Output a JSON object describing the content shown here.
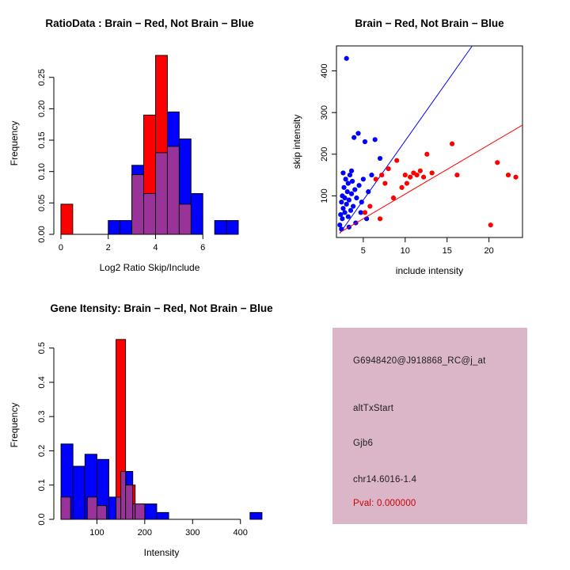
{
  "info_panel": {
    "bg": "#DBB6C9",
    "probe_id": "G6948420@J918868_RC@j_at",
    "event_type": "altTxStart",
    "gene": "Gjb6",
    "location": "chr14.6016-1.4",
    "pval": "Pval: 0.000000",
    "pval_color": "#CD0000",
    "text_color": "#1d1d1d"
  },
  "chart_data": [
    {
      "id": "ratio_hist",
      "type": "bar",
      "title": "RatioData : Brain − Red, Not Brain − Blue",
      "xlabel": "Log2 Ratio Skip/Include",
      "ylabel": "Frequency",
      "xlim": [
        -0.3,
        7.8
      ],
      "ylim": [
        0,
        0.29
      ],
      "grid": false,
      "legend": "none",
      "xticks": {
        "values": [
          0,
          2,
          4,
          6
        ],
        "labels": [
          "0",
          "2",
          "4",
          "6"
        ]
      },
      "yticks": {
        "values": [
          0,
          0.05,
          0.1,
          0.15,
          0.2,
          0.25
        ],
        "labels": [
          "0.00",
          "0.05",
          "0.10",
          "0.15",
          "0.20",
          "0.25"
        ]
      },
      "series": [
        {
          "name": "not-brain",
          "color": "#0000FF",
          "bins": [
            [
              2.0,
              2.5,
              0.022
            ],
            [
              2.5,
              3.0,
              0.022
            ],
            [
              3.0,
              3.5,
              0.11
            ],
            [
              3.5,
              4.0,
              0.065
            ],
            [
              4.0,
              4.5,
              0.13
            ],
            [
              4.5,
              5.0,
              0.195
            ],
            [
              5.0,
              5.5,
              0.152
            ],
            [
              5.5,
              6.0,
              0.065
            ],
            [
              6.5,
              7.0,
              0.022
            ],
            [
              7.0,
              7.5,
              0.022
            ]
          ]
        },
        {
          "name": "brain",
          "color": "#FF0000",
          "bins": [
            [
              0.0,
              0.5,
              0.048
            ],
            [
              3.0,
              3.5,
              0.095
            ],
            [
              3.5,
              4.0,
              0.19
            ],
            [
              4.0,
              4.5,
              0.285
            ],
            [
              4.5,
              5.0,
              0.14
            ],
            [
              5.0,
              5.5,
              0.048
            ]
          ]
        },
        {
          "name": "overlap",
          "color": "#993399",
          "bins": [
            [
              3.0,
              3.5,
              0.095
            ],
            [
              3.5,
              4.0,
              0.065
            ],
            [
              4.0,
              4.5,
              0.13
            ],
            [
              4.5,
              5.0,
              0.14
            ],
            [
              5.0,
              5.5,
              0.048
            ]
          ]
        }
      ]
    },
    {
      "id": "intensity_scatter",
      "type": "scatter",
      "title": "Brain − Red, Not Brain − Blue",
      "xlabel": "include intensity",
      "ylabel": "skip intensity",
      "xlim": [
        1.8,
        24
      ],
      "ylim": [
        0,
        460
      ],
      "grid": false,
      "legend": "none",
      "frame": true,
      "xticks": {
        "values": [
          5,
          10,
          15,
          20
        ],
        "labels": [
          "5",
          "10",
          "15",
          "20"
        ]
      },
      "yticks": {
        "values": [
          100,
          200,
          300,
          400
        ],
        "labels": [
          "100",
          "200",
          "300",
          "400"
        ]
      },
      "series": [
        {
          "name": "not-brain",
          "color": "#0000FF",
          "line": [
            [
              2.2,
              10
            ],
            [
              18.0,
              460
            ]
          ],
          "points": [
            [
              2.2,
              30
            ],
            [
              2.3,
              55
            ],
            [
              2.4,
              20
            ],
            [
              2.4,
              85
            ],
            [
              2.5,
              45
            ],
            [
              2.5,
              100
            ],
            [
              2.6,
              70
            ],
            [
              2.6,
              155
            ],
            [
              2.7,
              120
            ],
            [
              2.8,
              60
            ],
            [
              2.8,
              95
            ],
            [
              2.9,
              140
            ],
            [
              3.0,
              80
            ],
            [
              3.0,
              430
            ],
            [
              3.1,
              110
            ],
            [
              3.2,
              50
            ],
            [
              3.2,
              130
            ],
            [
              3.3,
              25
            ],
            [
              3.3,
              90
            ],
            [
              3.4,
              150
            ],
            [
              3.5,
              65
            ],
            [
              3.6,
              105
            ],
            [
              3.6,
              160
            ],
            [
              3.7,
              135
            ],
            [
              3.8,
              75
            ],
            [
              3.9,
              240
            ],
            [
              4.0,
              115
            ],
            [
              4.1,
              35
            ],
            [
              4.2,
              95
            ],
            [
              4.4,
              250
            ],
            [
              4.5,
              125
            ],
            [
              4.7,
              60
            ],
            [
              4.8,
              85
            ],
            [
              5.0,
              140
            ],
            [
              5.2,
              230
            ],
            [
              5.4,
              45
            ],
            [
              5.6,
              110
            ],
            [
              6.0,
              150
            ],
            [
              6.4,
              235
            ],
            [
              7.0,
              190
            ]
          ]
        },
        {
          "name": "brain",
          "color": "#FF0000",
          "line": [
            [
              2.2,
              12
            ],
            [
              24.0,
              270
            ]
          ],
          "points": [
            [
              5.2,
              60
            ],
            [
              5.8,
              75
            ],
            [
              6.5,
              140
            ],
            [
              7.0,
              45
            ],
            [
              7.2,
              150
            ],
            [
              7.6,
              130
            ],
            [
              8.0,
              165
            ],
            [
              8.6,
              95
            ],
            [
              9.0,
              185
            ],
            [
              9.6,
              120
            ],
            [
              10.0,
              150
            ],
            [
              10.2,
              130
            ],
            [
              10.6,
              145
            ],
            [
              11.0,
              155
            ],
            [
              11.4,
              150
            ],
            [
              11.8,
              160
            ],
            [
              12.2,
              145
            ],
            [
              12.6,
              200
            ],
            [
              13.2,
              155
            ],
            [
              15.6,
              225
            ],
            [
              16.2,
              150
            ],
            [
              20.2,
              30
            ],
            [
              21.0,
              180
            ],
            [
              22.3,
              150
            ],
            [
              23.2,
              145
            ]
          ]
        }
      ]
    },
    {
      "id": "gene_hist",
      "type": "bar",
      "title": "Gene Itensity: Brain − Red, Not Brain − Blue",
      "xlabel": "Intensity",
      "ylabel": "Frequency",
      "xlim": [
        10,
        460
      ],
      "ylim": [
        0,
        0.55
      ],
      "grid": false,
      "legend": "none",
      "xticks": {
        "values": [
          100,
          200,
          300,
          400
        ],
        "labels": [
          "100",
          "200",
          "300",
          "400"
        ]
      },
      "yticks": {
        "values": [
          0,
          0.1,
          0.2,
          0.3,
          0.4,
          0.5
        ],
        "labels": [
          "0.0",
          "0.1",
          "0.2",
          "0.3",
          "0.4",
          "0.5"
        ]
      },
      "series": [
        {
          "name": "not-brain",
          "color": "#0000FF",
          "bins": [
            [
              25,
              50,
              0.22
            ],
            [
              50,
              75,
              0.155
            ],
            [
              75,
              100,
              0.19
            ],
            [
              100,
              125,
              0.175
            ],
            [
              125,
              150,
              0.065
            ],
            [
              150,
              175,
              0.14
            ],
            [
              175,
              200,
              0.045
            ],
            [
              200,
              225,
              0.045
            ],
            [
              225,
              250,
              0.02
            ],
            [
              420,
              445,
              0.02
            ]
          ]
        },
        {
          "name": "brain",
          "color": "#FF0000",
          "bins": [
            [
              25,
              45,
              0.065
            ],
            [
              80,
              100,
              0.065
            ],
            [
              100,
              120,
              0.04
            ],
            [
              140,
              160,
              0.525
            ],
            [
              160,
              180,
              0.1
            ],
            [
              180,
              200,
              0.045
            ]
          ]
        },
        {
          "name": "overlap",
          "color": "#993399",
          "bins": [
            [
              25,
              45,
              0.065
            ],
            [
              80,
              100,
              0.065
            ],
            [
              100,
              120,
              0.04
            ],
            [
              140,
              150,
              0.065
            ],
            [
              150,
              160,
              0.14
            ],
            [
              160,
              175,
              0.1
            ],
            [
              175,
              180,
              0.045
            ],
            [
              180,
              200,
              0.045
            ]
          ]
        }
      ]
    }
  ]
}
